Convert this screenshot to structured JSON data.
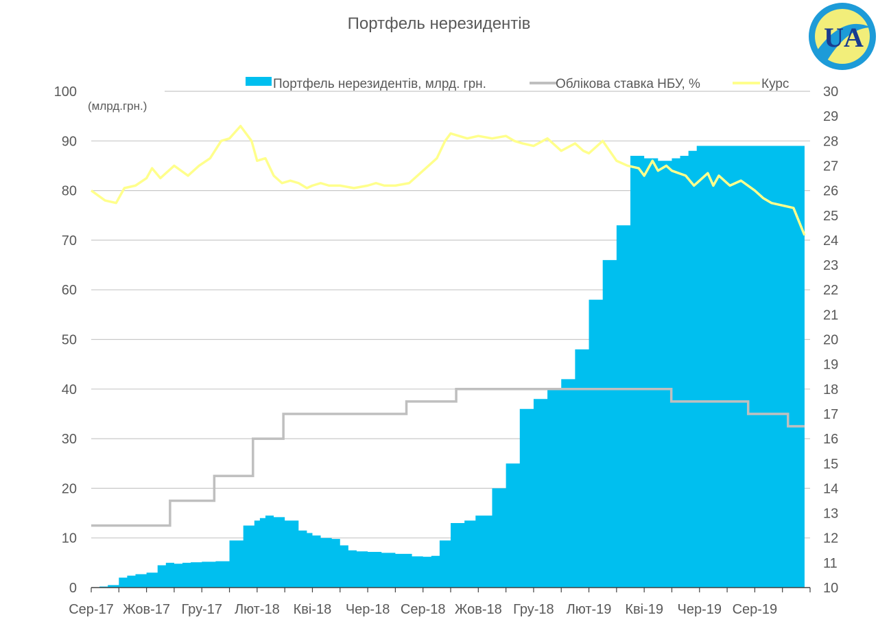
{
  "chart_data": {
    "type": "area",
    "title": "Портфель нерезидентів",
    "left_axis_unit": "(млрд.грн.)",
    "grid": true,
    "legend_position": "top-right",
    "colors": {
      "portfolio": "#00bfef",
      "rate": "#bfbfbf",
      "fx": "#ffff8c",
      "grid": "#c8c8c8",
      "axis": "#404040"
    },
    "x_ticks": [
      "Сер-17",
      "Жов-17",
      "Гру-17",
      "Лют-18",
      "Кві-18",
      "Чер-18",
      "Сер-18",
      "Жов-18",
      "Гру-18",
      "Лют-19",
      "Кві-19",
      "Чер-19",
      "Сер-19"
    ],
    "y_left": {
      "range": [
        0,
        100
      ],
      "ticks": [
        "0",
        "10",
        "20",
        "30",
        "40",
        "50",
        "60",
        "70",
        "80",
        "90",
        "100"
      ]
    },
    "y_right": {
      "range": [
        10,
        30
      ],
      "ticks": [
        "10",
        "11",
        "12",
        "13",
        "14",
        "15",
        "16",
        "17",
        "18",
        "19",
        "20",
        "21",
        "22",
        "23",
        "24",
        "25",
        "26",
        "27",
        "28",
        "29",
        "30"
      ]
    },
    "series": [
      {
        "name": "Портфель нерезидентів, млрд. грн.",
        "axis": "left",
        "kind": "area",
        "x": [
          0,
          0.3,
          0.6,
          1.0,
          1.3,
          1.6,
          2.0,
          2.4,
          2.7,
          3.0,
          3.3,
          3.6,
          4.0,
          4.5,
          5.0,
          5.5,
          5.9,
          6.1,
          6.3,
          6.6,
          7.0,
          7.5,
          7.8,
          8.0,
          8.3,
          8.7,
          9.0,
          9.3,
          9.6,
          10.0,
          10.5,
          11.0,
          11.6,
          12.0,
          12.3,
          12.6,
          13.0,
          13.5,
          13.9,
          14.5,
          15.0,
          15.5,
          16.0,
          16.5,
          17.0,
          17.5,
          18.0,
          18.5,
          19.0,
          19.5,
          20.0,
          20.5,
          21.0,
          21.3,
          21.6,
          21.9,
          22.2,
          22.5,
          22.8,
          23.1,
          23.4,
          23.7,
          24.0,
          24.3,
          24.6,
          24.9,
          25.2,
          25.5,
          25.8
        ],
        "values": [
          0,
          0.2,
          0.5,
          2.0,
          2.4,
          2.7,
          3.0,
          4.5,
          5.0,
          4.8,
          5.0,
          5.1,
          5.2,
          5.3,
          9.5,
          12.5,
          13.5,
          14.0,
          14.5,
          14.2,
          13.5,
          11.5,
          11.0,
          10.5,
          10.0,
          9.8,
          8.5,
          7.5,
          7.3,
          7.2,
          7.0,
          6.8,
          6.3,
          6.2,
          6.4,
          9.5,
          13.0,
          13.5,
          14.5,
          20.0,
          25.0,
          36.0,
          38.0,
          40.0,
          42.0,
          48.0,
          58.0,
          66.0,
          73.0,
          87.0,
          86.5,
          86.0,
          86.5,
          87.0,
          88.0,
          89.0,
          89.0,
          89.0,
          89.0,
          89.0,
          89.0,
          89.0,
          89.0,
          89.0,
          89.0,
          89.0,
          89.0,
          89.0,
          89.0
        ]
      },
      {
        "name": "Облікова ставка НБУ, %",
        "axis": "right",
        "kind": "step",
        "x": [
          0,
          2.85,
          4.45,
          5.85,
          6.95,
          11.4,
          13.2,
          20.98,
          23.76,
          25.2,
          25.8
        ],
        "values": [
          12.5,
          13.5,
          14.5,
          16.0,
          17.0,
          17.5,
          18.0,
          17.5,
          17.0,
          16.5,
          16.5
        ]
      },
      {
        "name": "Курс",
        "axis": "right",
        "kind": "line",
        "x": [
          0,
          0.5,
          0.9,
          1.2,
          1.6,
          2.0,
          2.2,
          2.5,
          3.0,
          3.5,
          3.9,
          4.3,
          4.7,
          5.0,
          5.4,
          5.8,
          6.0,
          6.3,
          6.6,
          6.9,
          7.2,
          7.5,
          7.8,
          8.0,
          8.3,
          8.6,
          9.0,
          9.5,
          10.0,
          10.3,
          10.6,
          11.0,
          11.5,
          12.0,
          12.5,
          12.8,
          13.0,
          13.3,
          13.6,
          14.0,
          14.5,
          15.0,
          15.3,
          15.6,
          16.0,
          16.5,
          17.0,
          17.5,
          17.8,
          18.0,
          18.5,
          19.0,
          19.4,
          19.8,
          20.0,
          20.3,
          20.5,
          20.8,
          21.0,
          21.5,
          21.8,
          22.0,
          22.3,
          22.5,
          22.7,
          23.1,
          23.5,
          24.0,
          24.3,
          24.6,
          25.0,
          25.4,
          25.8
        ],
        "values": [
          26.0,
          25.6,
          25.5,
          26.1,
          26.2,
          26.5,
          26.9,
          26.5,
          27.0,
          26.6,
          27.0,
          27.3,
          28.0,
          28.1,
          28.6,
          28.0,
          27.2,
          27.3,
          26.6,
          26.3,
          26.4,
          26.3,
          26.1,
          26.2,
          26.3,
          26.2,
          26.2,
          26.1,
          26.2,
          26.3,
          26.2,
          26.2,
          26.3,
          26.8,
          27.3,
          28.0,
          28.3,
          28.2,
          28.1,
          28.2,
          28.1,
          28.2,
          28.0,
          27.9,
          27.8,
          28.1,
          27.6,
          27.9,
          27.6,
          27.5,
          28.0,
          27.2,
          27.0,
          26.9,
          26.6,
          27.2,
          26.8,
          27.0,
          26.8,
          26.6,
          26.2,
          26.4,
          26.7,
          26.2,
          26.6,
          26.2,
          26.4,
          26.0,
          25.7,
          25.5,
          25.4,
          25.3,
          24.2
        ]
      }
    ]
  },
  "logo": {
    "text": "UA",
    "colors": {
      "blue": "#1d9bd8",
      "yellow": "#f2ee7a",
      "dark": "#1a3c8f"
    }
  }
}
